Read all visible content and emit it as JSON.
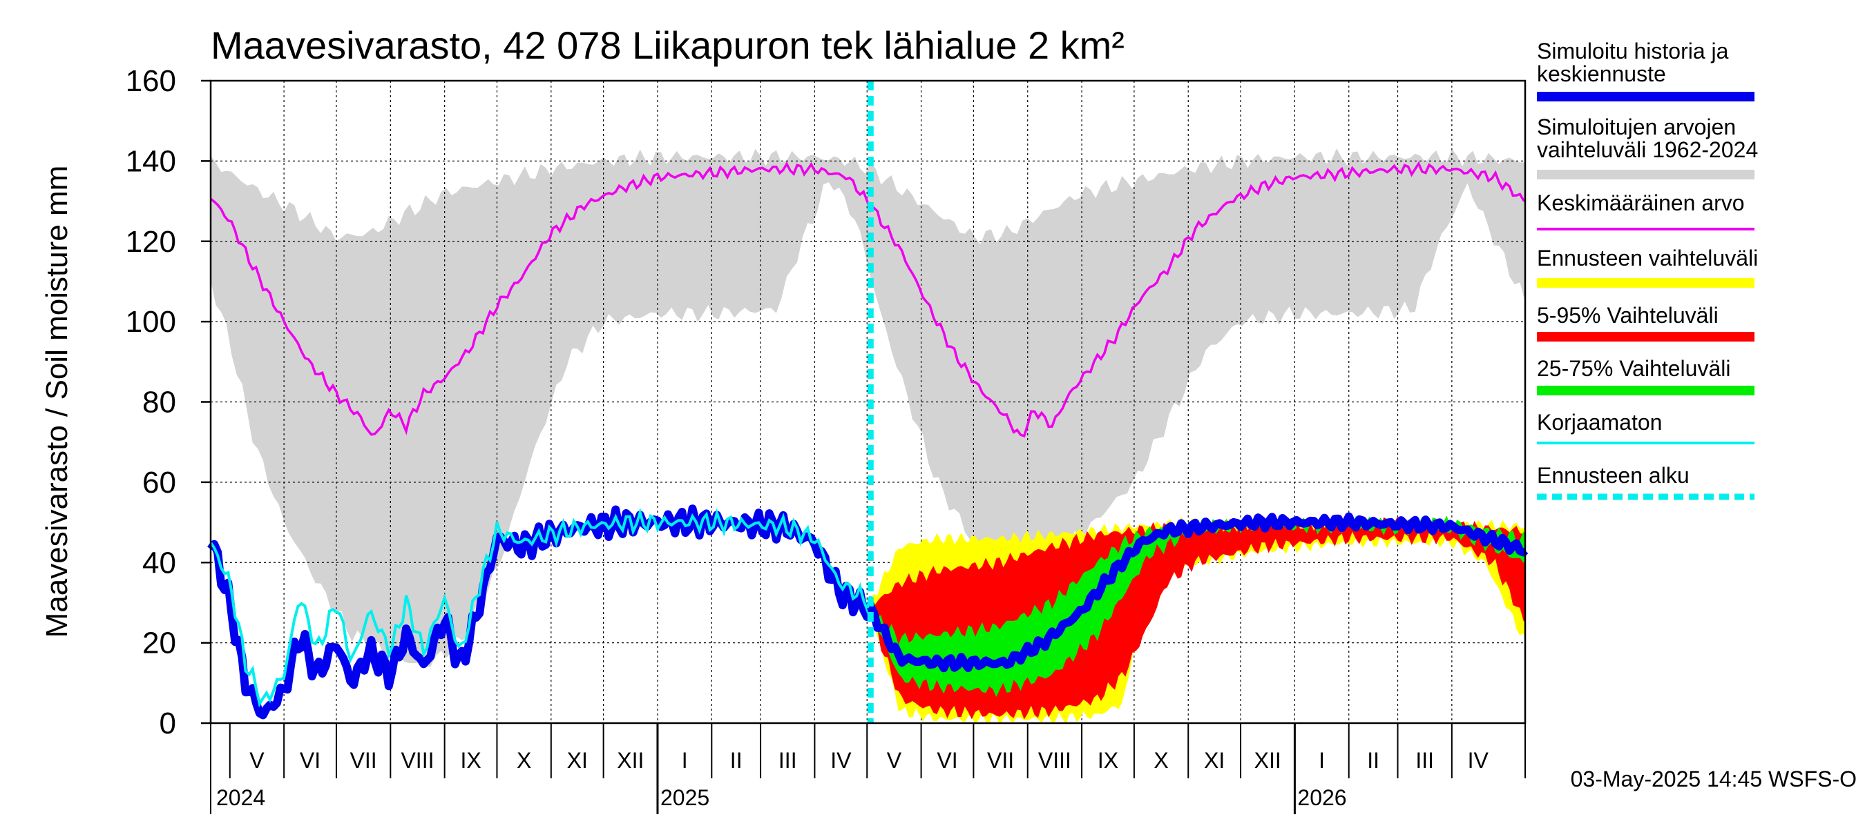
{
  "chart_data": {
    "type": "area",
    "title": "Maavesivarasto, 42 078 Liikapuron tek lähialue 2 km²",
    "ylabel": "Maavesivarasto / Soil moisture   mm",
    "ylim": [
      0,
      160
    ],
    "yticks": [
      0,
      20,
      40,
      60,
      80,
      100,
      120,
      140,
      160
    ],
    "xlim": [
      "2024-04-20",
      "2026-05-13"
    ],
    "grid": true,
    "forecast_start": "2025-05-03",
    "months": [
      {
        "label": "V",
        "start": "2024-05-01",
        "end": "2024-06-01"
      },
      {
        "label": "VI",
        "start": "2024-06-01",
        "end": "2024-07-01"
      },
      {
        "label": "VII",
        "start": "2024-07-01",
        "end": "2024-08-01"
      },
      {
        "label": "VIII",
        "start": "2024-08-01",
        "end": "2024-09-01"
      },
      {
        "label": "IX",
        "start": "2024-09-01",
        "end": "2024-10-01"
      },
      {
        "label": "X",
        "start": "2024-10-01",
        "end": "2024-11-01"
      },
      {
        "label": "XI",
        "start": "2024-11-01",
        "end": "2024-12-01"
      },
      {
        "label": "XII",
        "start": "2024-12-01",
        "end": "2025-01-01"
      },
      {
        "label": "I",
        "start": "2025-01-01",
        "end": "2025-02-01"
      },
      {
        "label": "II",
        "start": "2025-02-01",
        "end": "2025-03-01"
      },
      {
        "label": "III",
        "start": "2025-03-01",
        "end": "2025-04-01"
      },
      {
        "label": "IV",
        "start": "2025-04-01",
        "end": "2025-05-01"
      },
      {
        "label": "V",
        "start": "2025-05-01",
        "end": "2025-06-01"
      },
      {
        "label": "VI",
        "start": "2025-06-01",
        "end": "2025-07-01"
      },
      {
        "label": "VII",
        "start": "2025-07-01",
        "end": "2025-08-01"
      },
      {
        "label": "VIII",
        "start": "2025-08-01",
        "end": "2025-09-01"
      },
      {
        "label": "IX",
        "start": "2025-09-01",
        "end": "2025-10-01"
      },
      {
        "label": "X",
        "start": "2025-10-01",
        "end": "2025-11-01"
      },
      {
        "label": "XI",
        "start": "2025-11-01",
        "end": "2025-12-01"
      },
      {
        "label": "XII",
        "start": "2025-12-01",
        "end": "2026-01-01"
      },
      {
        "label": "I",
        "start": "2026-01-01",
        "end": "2026-02-01"
      },
      {
        "label": "II",
        "start": "2026-02-01",
        "end": "2026-03-01"
      },
      {
        "label": "III",
        "start": "2026-03-01",
        "end": "2026-04-01"
      },
      {
        "label": "IV",
        "start": "2026-04-01",
        "end": "2026-05-01"
      }
    ],
    "years": [
      {
        "label": "2024",
        "date": "2024-05-01"
      },
      {
        "label": "2025",
        "date": "2025-01-01"
      },
      {
        "label": "2026",
        "date": "2026-01-01"
      }
    ],
    "legend": [
      {
        "key": "hist",
        "label": [
          "Simuloitu historia ja",
          "keskiennuste"
        ],
        "color": "#0000ee",
        "style": "thick"
      },
      {
        "key": "range",
        "label": [
          "Simuloitujen arvojen",
          "vaihteluväli 1962-2024"
        ],
        "color": "#d3d3d3",
        "style": "thick"
      },
      {
        "key": "mean",
        "label": [
          "Keskimääräinen arvo"
        ],
        "color": "#ee00ee",
        "style": "thin"
      },
      {
        "key": "fcrange",
        "label": [
          "Ennusteen vaihteluväli"
        ],
        "color": "#ffff00",
        "style": "thick"
      },
      {
        "key": "p595",
        "label": [
          "5-95% Vaihteluväli"
        ],
        "color": "#ff0000",
        "style": "thick"
      },
      {
        "key": "p2575",
        "label": [
          "25-75% Vaihteluväli"
        ],
        "color": "#00ee00",
        "style": "thick"
      },
      {
        "key": "uncorr",
        "label": [
          "Korjaamaton"
        ],
        "color": "#00eeee",
        "style": "thin"
      },
      {
        "key": "fcstart",
        "label": [
          "Ennusteen alku"
        ],
        "color": "#00eeee",
        "style": "dashed"
      }
    ],
    "series": {
      "range_upper": [
        [
          "2024-04-20",
          140
        ],
        [
          "2024-05-01",
          137
        ],
        [
          "2024-05-20",
          132
        ],
        [
          "2024-06-10",
          127
        ],
        [
          "2024-07-01",
          121
        ],
        [
          "2024-07-20",
          122
        ],
        [
          "2024-08-10",
          127
        ],
        [
          "2024-09-01",
          132
        ],
        [
          "2024-10-01",
          135
        ],
        [
          "2024-11-01",
          138
        ],
        [
          "2024-12-01",
          140
        ],
        [
          "2025-01-01",
          141
        ],
        [
          "2025-02-01",
          141
        ],
        [
          "2025-03-01",
          141
        ],
        [
          "2025-04-01",
          141
        ],
        [
          "2025-04-20",
          140
        ],
        [
          "2025-05-03",
          138
        ],
        [
          "2025-05-20",
          133
        ],
        [
          "2025-06-10",
          127
        ],
        [
          "2025-07-01",
          121
        ],
        [
          "2025-07-20",
          122
        ],
        [
          "2025-08-10",
          127
        ],
        [
          "2025-09-01",
          132
        ],
        [
          "2025-10-01",
          135
        ],
        [
          "2025-11-01",
          138
        ],
        [
          "2025-12-01",
          140
        ],
        [
          "2026-01-01",
          141
        ],
        [
          "2026-02-01",
          141
        ],
        [
          "2026-03-01",
          141
        ],
        [
          "2026-04-01",
          141
        ],
        [
          "2026-05-13",
          140
        ]
      ],
      "range_lower": [
        [
          "2024-04-20",
          110
        ],
        [
          "2024-05-01",
          95
        ],
        [
          "2024-05-15",
          70
        ],
        [
          "2024-06-01",
          50
        ],
        [
          "2024-06-20",
          35
        ],
        [
          "2024-07-10",
          22
        ],
        [
          "2024-08-01",
          17
        ],
        [
          "2024-08-20",
          14
        ],
        [
          "2024-09-10",
          20
        ],
        [
          "2024-10-01",
          38
        ],
        [
          "2024-10-20",
          65
        ],
        [
          "2024-11-10",
          90
        ],
        [
          "2024-12-01",
          100
        ],
        [
          "2025-01-01",
          102
        ],
        [
          "2025-02-01",
          102
        ],
        [
          "2025-03-10",
          103
        ],
        [
          "2025-03-25",
          120
        ],
        [
          "2025-04-10",
          136
        ],
        [
          "2025-04-25",
          125
        ],
        [
          "2025-05-10",
          100
        ],
        [
          "2025-05-25",
          80
        ],
        [
          "2025-06-10",
          60
        ],
        [
          "2025-07-01",
          45
        ],
        [
          "2025-07-20",
          40
        ],
        [
          "2025-08-10",
          42
        ],
        [
          "2025-09-01",
          47
        ],
        [
          "2025-10-01",
          60
        ],
        [
          "2025-10-20",
          75
        ],
        [
          "2025-11-10",
          92
        ],
        [
          "2025-12-01",
          100
        ],
        [
          "2026-01-01",
          102
        ],
        [
          "2026-02-01",
          102
        ],
        [
          "2026-03-10",
          103
        ],
        [
          "2026-03-25",
          120
        ],
        [
          "2026-04-10",
          134
        ],
        [
          "2026-05-13",
          105
        ]
      ],
      "mean": [
        [
          "2024-04-20",
          131
        ],
        [
          "2024-05-01",
          125
        ],
        [
          "2024-05-15",
          113
        ],
        [
          "2024-06-01",
          100
        ],
        [
          "2024-06-15",
          90
        ],
        [
          "2024-07-01",
          82
        ],
        [
          "2024-07-15",
          76
        ],
        [
          "2024-07-22",
          71
        ],
        [
          "2024-08-01",
          78
        ],
        [
          "2024-08-10",
          74
        ],
        [
          "2024-08-20",
          82
        ],
        [
          "2024-09-01",
          86
        ],
        [
          "2024-09-15",
          93
        ],
        [
          "2024-10-01",
          104
        ],
        [
          "2024-10-15",
          111
        ],
        [
          "2024-11-01",
          122
        ],
        [
          "2024-11-20",
          129
        ],
        [
          "2024-12-10",
          133
        ],
        [
          "2025-01-01",
          136
        ],
        [
          "2025-02-01",
          137
        ],
        [
          "2025-03-01",
          138
        ],
        [
          "2025-04-01",
          138
        ],
        [
          "2025-04-20",
          136
        ],
        [
          "2025-05-03",
          129
        ],
        [
          "2025-05-20",
          118
        ],
        [
          "2025-06-05",
          104
        ],
        [
          "2025-06-20",
          92
        ],
        [
          "2025-07-05",
          83
        ],
        [
          "2025-07-20",
          76
        ],
        [
          "2025-07-28",
          71
        ],
        [
          "2025-08-05",
          78
        ],
        [
          "2025-08-15",
          74
        ],
        [
          "2025-08-25",
          82
        ],
        [
          "2025-09-05",
          88
        ],
        [
          "2025-09-20",
          96
        ],
        [
          "2025-10-05",
          106
        ],
        [
          "2025-10-20",
          113
        ],
        [
          "2025-11-05",
          123
        ],
        [
          "2025-11-25",
          130
        ],
        [
          "2025-12-15",
          134
        ],
        [
          "2026-01-01",
          136
        ],
        [
          "2026-02-01",
          137
        ],
        [
          "2026-03-01",
          138
        ],
        [
          "2026-04-01",
          138
        ],
        [
          "2026-04-25",
          136
        ],
        [
          "2026-05-13",
          130
        ]
      ],
      "uncorrected": [
        [
          "2024-04-20",
          45
        ],
        [
          "2024-05-01",
          35
        ],
        [
          "2024-05-10",
          15
        ],
        [
          "2024-05-20",
          5
        ],
        [
          "2024-06-01",
          12
        ],
        [
          "2024-06-10",
          32
        ],
        [
          "2024-06-20",
          18
        ],
        [
          "2024-07-01",
          30
        ],
        [
          "2024-07-10",
          15
        ],
        [
          "2024-07-20",
          28
        ],
        [
          "2024-08-01",
          18
        ],
        [
          "2024-08-10",
          30
        ],
        [
          "2024-08-20",
          18
        ],
        [
          "2024-09-01",
          31
        ],
        [
          "2024-09-10",
          17
        ],
        [
          "2024-09-20",
          33
        ],
        [
          "2024-10-01",
          48
        ],
        [
          "2024-10-15",
          45
        ],
        [
          "2024-11-01",
          47
        ],
        [
          "2024-11-20",
          49
        ],
        [
          "2024-12-15",
          50
        ],
        [
          "2025-02-01",
          50
        ],
        [
          "2025-03-15",
          49
        ],
        [
          "2025-04-01",
          46
        ],
        [
          "2025-04-15",
          35
        ],
        [
          "2025-05-03",
          30
        ]
      ],
      "history": [
        [
          "2024-04-20",
          46
        ],
        [
          "2024-05-01",
          30
        ],
        [
          "2024-05-10",
          10
        ],
        [
          "2024-05-20",
          2
        ],
        [
          "2024-06-01",
          8
        ],
        [
          "2024-06-10",
          22
        ],
        [
          "2024-06-20",
          12
        ],
        [
          "2024-07-01",
          20
        ],
        [
          "2024-07-10",
          10
        ],
        [
          "2024-07-20",
          18
        ],
        [
          "2024-08-01",
          12
        ],
        [
          "2024-08-10",
          22
        ],
        [
          "2024-08-20",
          14
        ],
        [
          "2024-09-01",
          26
        ],
        [
          "2024-09-10",
          14
        ],
        [
          "2024-09-20",
          28
        ],
        [
          "2024-10-01",
          46
        ],
        [
          "2024-10-15",
          44
        ],
        [
          "2024-11-01",
          47
        ],
        [
          "2024-11-20",
          49
        ],
        [
          "2024-12-15",
          50
        ],
        [
          "2025-02-01",
          50
        ],
        [
          "2025-03-15",
          49
        ],
        [
          "2025-04-01",
          45
        ],
        [
          "2025-04-15",
          33
        ],
        [
          "2025-05-03",
          28
        ]
      ],
      "forecast_median": [
        [
          "2025-05-03",
          28
        ],
        [
          "2025-05-20",
          16
        ],
        [
          "2025-06-10",
          15
        ],
        [
          "2025-07-01",
          15
        ],
        [
          "2025-07-20",
          15
        ],
        [
          "2025-08-10",
          20
        ],
        [
          "2025-09-01",
          28
        ],
        [
          "2025-09-20",
          38
        ],
        [
          "2025-10-05",
          45
        ],
        [
          "2025-10-20",
          48
        ],
        [
          "2025-11-10",
          49
        ],
        [
          "2025-12-10",
          50
        ],
        [
          "2026-02-01",
          50
        ],
        [
          "2026-04-01",
          49
        ],
        [
          "2026-05-13",
          43
        ]
      ],
      "fc_min": [
        [
          "2025-05-03",
          27
        ],
        [
          "2025-05-20",
          3
        ],
        [
          "2025-06-10",
          1
        ],
        [
          "2025-07-15",
          1
        ],
        [
          "2025-08-15",
          1
        ],
        [
          "2025-09-10",
          2
        ],
        [
          "2025-09-25",
          5
        ],
        [
          "2025-10-05",
          30
        ],
        [
          "2025-10-20",
          38
        ],
        [
          "2025-11-05",
          40
        ],
        [
          "2025-12-15",
          43
        ],
        [
          "2026-02-01",
          45
        ],
        [
          "2026-04-01",
          45
        ],
        [
          "2026-04-20",
          40
        ],
        [
          "2026-05-13",
          20
        ]
      ],
      "fc_max": [
        [
          "2025-05-03",
          30
        ],
        [
          "2025-05-20",
          44
        ],
        [
          "2025-06-10",
          46
        ],
        [
          "2025-07-15",
          46
        ],
        [
          "2025-08-15",
          47
        ],
        [
          "2025-09-10",
          48
        ],
        [
          "2025-10-01",
          49
        ],
        [
          "2025-11-01",
          50
        ],
        [
          "2026-03-01",
          50
        ],
        [
          "2026-05-13",
          49
        ]
      ],
      "p5": [
        [
          "2025-05-03",
          27
        ],
        [
          "2025-05-20",
          6
        ],
        [
          "2025-06-10",
          3
        ],
        [
          "2025-07-15",
          2
        ],
        [
          "2025-08-15",
          3
        ],
        [
          "2025-09-10",
          6
        ],
        [
          "2025-09-25",
          12
        ],
        [
          "2025-10-10",
          25
        ],
        [
          "2025-10-20",
          35
        ],
        [
          "2025-11-05",
          40
        ],
        [
          "2025-12-15",
          44
        ],
        [
          "2026-02-01",
          46
        ],
        [
          "2026-04-01",
          46
        ],
        [
          "2026-04-25",
          40
        ],
        [
          "2026-05-13",
          25
        ]
      ],
      "p95": [
        [
          "2025-05-03",
          29
        ],
        [
          "2025-05-20",
          35
        ],
        [
          "2025-06-10",
          38
        ],
        [
          "2025-07-15",
          40
        ],
        [
          "2025-08-15",
          44
        ],
        [
          "2025-09-10",
          47
        ],
        [
          "2025-10-01",
          48
        ],
        [
          "2025-11-01",
          49
        ],
        [
          "2026-03-01",
          50
        ],
        [
          "2026-05-13",
          48
        ]
      ],
      "p25": [
        [
          "2025-05-03",
          28
        ],
        [
          "2025-05-20",
          11
        ],
        [
          "2025-06-10",
          9
        ],
        [
          "2025-07-15",
          8
        ],
        [
          "2025-08-15",
          12
        ],
        [
          "2025-09-10",
          22
        ],
        [
          "2025-09-25",
          32
        ],
        [
          "2025-10-10",
          42
        ],
        [
          "2025-11-01",
          47
        ],
        [
          "2025-12-01",
          49
        ],
        [
          "2026-04-01",
          48
        ],
        [
          "2026-05-13",
          40
        ]
      ],
      "p75": [
        [
          "2025-05-03",
          28
        ],
        [
          "2025-05-20",
          21
        ],
        [
          "2025-06-10",
          22
        ],
        [
          "2025-07-15",
          24
        ],
        [
          "2025-08-15",
          30
        ],
        [
          "2025-09-10",
          40
        ],
        [
          "2025-09-25",
          45
        ],
        [
          "2025-10-10",
          48
        ],
        [
          "2025-11-01",
          49
        ],
        [
          "2025-12-01",
          50
        ],
        [
          "2026-04-01",
          50
        ],
        [
          "2026-05-13",
          46
        ]
      ]
    }
  },
  "footer": "03-May-2025 14:45 WSFS-O"
}
